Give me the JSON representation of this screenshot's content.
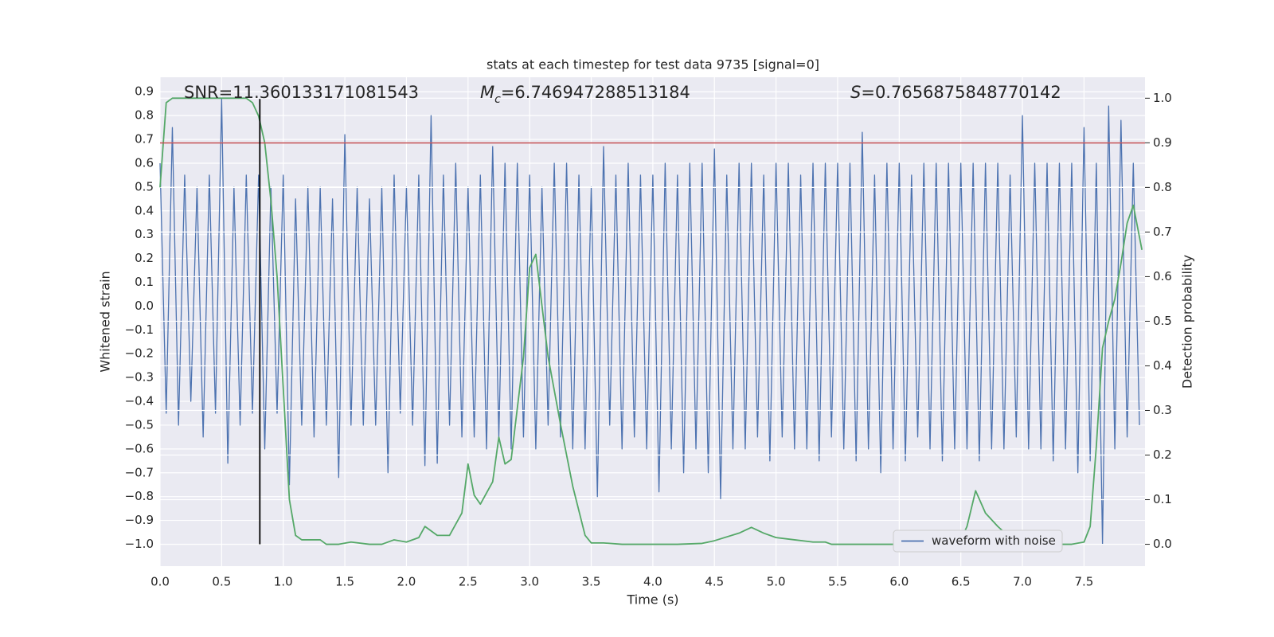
{
  "chart_data": {
    "type": "line",
    "title": "stats at each timestep for test data 9735 [signal=0]",
    "xlabel": "Time (s)",
    "ylabel": "Whitened strain",
    "y2label": "Detection probability",
    "annotations": [
      {
        "text": "SNR=11.360133171081543"
      },
      {
        "italic": "M",
        "sub": "c",
        "text": "=6.746947288513184"
      },
      {
        "italic": "S",
        "text": "=0.7656875848770142"
      }
    ],
    "xlim": [
      0,
      7.995
    ],
    "ylim": [
      -1.092,
      0.961
    ],
    "y2lim": [
      -0.049,
      1.047
    ],
    "xticks": [
      {
        "value": 0,
        "label": "0.0"
      },
      0.5,
      {
        "value": 1,
        "label": "1.0"
      },
      1.5,
      {
        "value": 2,
        "label": "2.0"
      },
      2.5,
      {
        "value": 3,
        "label": "3.0"
      },
      3.5,
      {
        "value": 4,
        "label": "4.0"
      },
      4.5,
      {
        "value": 5,
        "label": "5.0"
      },
      5.5,
      {
        "value": 6,
        "label": "6.0"
      },
      6.5,
      {
        "value": 7,
        "label": "7.0"
      },
      7.5
    ],
    "yticks": [
      0.9,
      0.8,
      0.7,
      0.6,
      0.5,
      0.4,
      0.3,
      0.2,
      0.1,
      {
        "value": 0,
        "label": "0.0"
      },
      {
        "value": -0.1,
        "label": "−0.1"
      },
      {
        "value": -0.2,
        "label": "−0.2"
      },
      {
        "value": -0.3,
        "label": "−0.3"
      },
      {
        "value": -0.4,
        "label": "−0.4"
      },
      {
        "value": -0.5,
        "label": "−0.5"
      },
      {
        "value": -0.6,
        "label": "−0.6"
      },
      {
        "value": -0.7,
        "label": "−0.7"
      },
      {
        "value": -0.8,
        "label": "−0.8"
      },
      {
        "value": -0.9,
        "label": "−0.9"
      },
      {
        "value": -1,
        "label": "−1.0"
      }
    ],
    "y2ticks": [
      {
        "value": 1,
        "label": "1.0"
      },
      0.9,
      0.8,
      0.7,
      0.6,
      0.5,
      0.4,
      0.3,
      0.2,
      0.1,
      {
        "value": 0,
        "label": "0.0"
      }
    ],
    "grid": true,
    "legend": "lower right",
    "threshold": {
      "y": 0.685,
      "color": "#c44e52"
    },
    "marker": {
      "x": 0.81,
      "ymin": -1.0,
      "ymax": 0.87,
      "color": "#000000"
    },
    "series": [
      {
        "name": "waveform with noise",
        "color": "#4c72b0",
        "axis": "y",
        "in_legend": true,
        "x": [
          0,
          0.05,
          0.1,
          0.15,
          0.2,
          0.25,
          0.3,
          0.35,
          0.4,
          0.45,
          0.5,
          0.55,
          0.6,
          0.65,
          0.7,
          0.75,
          0.8,
          0.85,
          0.9,
          0.95,
          1,
          1.05,
          1.1,
          1.15,
          1.2,
          1.25,
          1.3,
          1.35,
          1.4,
          1.45,
          1.5,
          1.55,
          1.6,
          1.65,
          1.7,
          1.75,
          1.8,
          1.85,
          1.9,
          1.95,
          2,
          2.05,
          2.1,
          2.15,
          2.2,
          2.25,
          2.3,
          2.35,
          2.4,
          2.45,
          2.5,
          2.55,
          2.6,
          2.65,
          2.7,
          2.75,
          2.8,
          2.85,
          2.9,
          2.95,
          3,
          3.05,
          3.1,
          3.15,
          3.2,
          3.25,
          3.3,
          3.35,
          3.4,
          3.45,
          3.5,
          3.55,
          3.6,
          3.65,
          3.7,
          3.75,
          3.8,
          3.85,
          3.9,
          3.95,
          4,
          4.05,
          4.1,
          4.15,
          4.2,
          4.25,
          4.3,
          4.35,
          4.4,
          4.45,
          4.5,
          4.55,
          4.6,
          4.65,
          4.7,
          4.75,
          4.8,
          4.85,
          4.9,
          4.95,
          5,
          5.05,
          5.1,
          5.15,
          5.2,
          5.25,
          5.3,
          5.35,
          5.4,
          5.45,
          5.5,
          5.55,
          5.6,
          5.65,
          5.7,
          5.75,
          5.8,
          5.85,
          5.9,
          5.95,
          6,
          6.05,
          6.1,
          6.15,
          6.2,
          6.25,
          6.3,
          6.35,
          6.4,
          6.45,
          6.5,
          6.55,
          6.6,
          6.65,
          6.7,
          6.75,
          6.8,
          6.85,
          6.9,
          6.95,
          7,
          7.05,
          7.1,
          7.15,
          7.2,
          7.25,
          7.3,
          7.35,
          7.4,
          7.45,
          7.5,
          7.55,
          7.6,
          7.65,
          7.7,
          7.75,
          7.8,
          7.85,
          7.9,
          7.95
        ],
        "values": [
          0.6,
          -0.45,
          0.75,
          -0.5,
          0.55,
          -0.4,
          0.5,
          -0.55,
          0.55,
          -0.45,
          0.87,
          -0.66,
          0.5,
          -0.5,
          0.55,
          -0.45,
          0.55,
          -0.6,
          0.5,
          -0.45,
          0.55,
          -0.75,
          0.45,
          -0.5,
          0.5,
          -0.55,
          0.5,
          -0.5,
          0.45,
          -0.72,
          0.72,
          -0.5,
          0.5,
          -0.5,
          0.45,
          -0.5,
          0.5,
          -0.7,
          0.55,
          -0.45,
          0.5,
          -0.5,
          0.55,
          -0.67,
          0.8,
          -0.66,
          0.55,
          -0.5,
          0.6,
          -0.55,
          0.5,
          -0.55,
          0.55,
          -0.6,
          0.67,
          -0.55,
          0.6,
          -0.6,
          0.6,
          -0.55,
          0.55,
          -0.6,
          0.5,
          -0.5,
          0.6,
          -0.55,
          0.6,
          -0.6,
          0.55,
          -0.6,
          0.5,
          -0.8,
          0.67,
          -0.5,
          0.55,
          -0.6,
          0.6,
          -0.55,
          0.55,
          -0.6,
          0.55,
          -0.78,
          0.6,
          -0.6,
          0.55,
          -0.7,
          0.6,
          -0.6,
          0.6,
          -0.7,
          0.66,
          -0.81,
          0.55,
          -0.6,
          0.6,
          -0.6,
          0.6,
          -0.55,
          0.55,
          -0.65,
          0.6,
          -0.55,
          0.6,
          -0.6,
          0.55,
          -0.6,
          0.6,
          -0.65,
          0.6,
          -0.55,
          0.6,
          -0.6,
          0.6,
          -0.65,
          0.73,
          -0.6,
          0.55,
          -0.7,
          0.6,
          -0.6,
          0.6,
          -0.65,
          0.55,
          -0.55,
          0.6,
          -0.6,
          0.6,
          -0.65,
          0.6,
          -0.6,
          0.6,
          -0.6,
          0.6,
          -0.65,
          0.6,
          -0.6,
          0.6,
          -0.6,
          0.55,
          -0.55,
          0.8,
          -0.6,
          0.6,
          -0.6,
          0.6,
          -0.65,
          0.6,
          -0.6,
          0.6,
          -0.7,
          0.75,
          -0.65,
          0.6,
          -1.0,
          0.84,
          -0.6,
          0.78,
          -0.55,
          0.6,
          -0.5
        ]
      },
      {
        "color": "#55a868",
        "axis": "y2",
        "in_legend": false,
        "x": [
          0,
          0.05,
          0.1,
          0.2,
          0.3,
          0.4,
          0.5,
          0.6,
          0.7,
          0.75,
          0.8,
          0.85,
          0.9,
          0.95,
          1.0,
          1.05,
          1.1,
          1.15,
          1.2,
          1.3,
          1.35,
          1.45,
          1.55,
          1.7,
          1.8,
          1.9,
          2.0,
          2.1,
          2.15,
          2.25,
          2.35,
          2.45,
          2.5,
          2.55,
          2.6,
          2.7,
          2.75,
          2.8,
          2.85,
          2.95,
          3.0,
          3.05,
          3.15,
          3.25,
          3.35,
          3.45,
          3.5,
          3.6,
          3.75,
          3.9,
          4.0,
          4.2,
          4.4,
          4.5,
          4.7,
          4.8,
          4.9,
          5.0,
          5.15,
          5.3,
          5.4,
          5.45,
          5.6,
          5.9,
          6.2,
          6.4,
          6.5,
          6.55,
          6.62,
          6.7,
          6.8,
          6.9,
          6.95,
          7.1,
          7.4,
          7.5,
          7.55,
          7.6,
          7.65,
          7.7,
          7.75,
          7.8,
          7.85,
          7.9,
          7.97
        ],
        "values": [
          0.8,
          0.99,
          1.0,
          1.0,
          1.0,
          1.0,
          1.0,
          1.0,
          1.0,
          0.99,
          0.96,
          0.9,
          0.77,
          0.6,
          0.35,
          0.1,
          0.02,
          0.01,
          0.01,
          0.01,
          0.0,
          0.0,
          0.005,
          0.0,
          0.0,
          0.01,
          0.005,
          0.015,
          0.04,
          0.02,
          0.02,
          0.07,
          0.18,
          0.11,
          0.09,
          0.14,
          0.24,
          0.18,
          0.19,
          0.42,
          0.62,
          0.65,
          0.42,
          0.27,
          0.13,
          0.02,
          0.003,
          0.003,
          0.0,
          0.0,
          0.0,
          0.0,
          0.002,
          0.008,
          0.025,
          0.038,
          0.025,
          0.015,
          0.01,
          0.005,
          0.005,
          0.0,
          0.0,
          0.0,
          0.0,
          0.002,
          0.01,
          0.04,
          0.12,
          0.07,
          0.04,
          0.015,
          0.005,
          0.0,
          0.0,
          0.005,
          0.04,
          0.22,
          0.44,
          0.5,
          0.55,
          0.63,
          0.72,
          0.76,
          0.66
        ]
      }
    ]
  }
}
